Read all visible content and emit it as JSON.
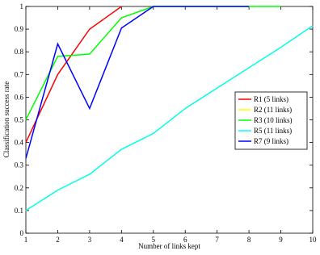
{
  "chart_data": {
    "type": "line",
    "x_label": "Number of links kept",
    "y_label": "Classification success rate",
    "x": [
      1,
      2,
      3,
      4,
      5,
      6,
      7,
      8,
      9,
      10
    ],
    "series": [
      {
        "name": "R1 (5 links)",
        "color": "#ff0000",
        "values": [
          0.4,
          0.7,
          0.9,
          1.0,
          null,
          null,
          null,
          null,
          null,
          null
        ]
      },
      {
        "name": "R2 (11 links)",
        "color": "#ffff00",
        "values": [
          0.1,
          0.19,
          0.26,
          0.37,
          0.44,
          0.55,
          0.64,
          0.73,
          0.82,
          0.915
        ]
      },
      {
        "name": "R3 (10 links)",
        "color": "#00ff00",
        "values": [
          0.5,
          0.78,
          0.79,
          0.95,
          1.0,
          1.0,
          1.0,
          1.0,
          1.0,
          null
        ]
      },
      {
        "name": "R5 (11 links)",
        "color": "#00ffff",
        "values": [
          0.1,
          0.19,
          0.26,
          0.37,
          0.44,
          0.55,
          0.64,
          0.73,
          0.82,
          0.915
        ]
      },
      {
        "name": "R7 (9 links)",
        "color": "#0000ff",
        "values": [
          0.33,
          0.835,
          0.55,
          0.905,
          1.0,
          1.0,
          1.0,
          1.0,
          null,
          null
        ]
      }
    ],
    "xlim": [
      1,
      10
    ],
    "ylim": [
      0,
      1
    ],
    "xticks": [
      1,
      2,
      3,
      4,
      5,
      6,
      7,
      8,
      9,
      10
    ],
    "yticks": [
      0,
      0.1,
      0.2,
      0.3,
      0.4,
      0.5,
      0.6,
      0.7,
      0.8,
      0.9,
      1
    ],
    "legend": "right"
  }
}
